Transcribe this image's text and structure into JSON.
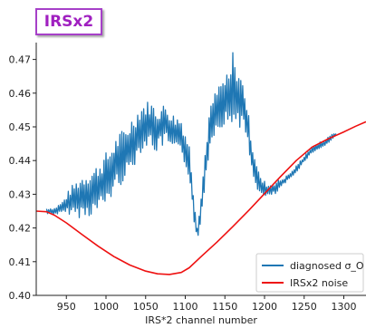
{
  "badge": {
    "label": "IRSx2"
  },
  "chart_data": {
    "type": "line",
    "title": "",
    "xlabel": "IRS*2 channel number",
    "ylabel": "",
    "xlim": [
      912,
      1328
    ],
    "ylim": [
      0.4,
      0.475
    ],
    "x_ticks": [
      950,
      1000,
      1050,
      1100,
      1150,
      1200,
      1250,
      1300
    ],
    "y_ticks": [
      0.4,
      0.41,
      0.42,
      0.43,
      0.44,
      0.45,
      0.46,
      0.47
    ],
    "y_tick_labels": [
      "0.40",
      "0.41",
      "0.42",
      "0.43",
      "0.44",
      "0.45",
      "0.46",
      "0.47"
    ],
    "grid": false,
    "legend_position": "bottom-right",
    "series": [
      {
        "name": "diagnosed σ_O",
        "color": "#1f77b4",
        "x": [
          925,
          935,
          945,
          955,
          965,
          975,
          985,
          995,
          1005,
          1015,
          1025,
          1035,
          1045,
          1055,
          1065,
          1075,
          1085,
          1095,
          1105,
          1110,
          1115,
          1120,
          1125,
          1130,
          1135,
          1145,
          1155,
          1165,
          1175,
          1185,
          1195,
          1205,
          1215,
          1225,
          1235,
          1245,
          1255,
          1265,
          1275,
          1285,
          1290
        ],
        "y": [
          0.425,
          0.425,
          0.426,
          0.428,
          0.429,
          0.43,
          0.431,
          0.433,
          0.436,
          0.44,
          0.442,
          0.446,
          0.45,
          0.451,
          0.449,
          0.451,
          0.448,
          0.447,
          0.44,
          0.428,
          0.418,
          0.426,
          0.438,
          0.448,
          0.453,
          0.457,
          0.458,
          0.46,
          0.455,
          0.44,
          0.432,
          0.431,
          0.432,
          0.434,
          0.436,
          0.439,
          0.442,
          0.444,
          0.445,
          0.447,
          0.448
        ],
        "noise": [
          0.001,
          0.001,
          0.002,
          0.004,
          0.006,
          0.007,
          0.007,
          0.008,
          0.008,
          0.008,
          0.008,
          0.008,
          0.007,
          0.007,
          0.007,
          0.006,
          0.006,
          0.006,
          0.005,
          0.004,
          0.004,
          0.004,
          0.005,
          0.006,
          0.006,
          0.007,
          0.008,
          0.009,
          0.007,
          0.005,
          0.003,
          0.002,
          0.002,
          0.001,
          0.001,
          0.001,
          0.001,
          0.001,
          0.001,
          0.001,
          0.001
        ]
      },
      {
        "name": "IRSx2 noise",
        "color": "#ee1111",
        "x": [
          912,
          925,
          935,
          950,
          970,
          990,
          1010,
          1030,
          1050,
          1065,
          1080,
          1095,
          1105,
          1120,
          1140,
          1160,
          1180,
          1200,
          1220,
          1240,
          1260,
          1280,
          1300,
          1315,
          1328
        ],
        "y": [
          0.425,
          0.4248,
          0.4238,
          0.4215,
          0.418,
          0.4146,
          0.4115,
          0.409,
          0.4072,
          0.4064,
          0.4062,
          0.4068,
          0.4082,
          0.4115,
          0.4158,
          0.4204,
          0.4252,
          0.4302,
          0.4352,
          0.44,
          0.444,
          0.4464,
          0.4485,
          0.4502,
          0.4515
        ]
      }
    ]
  }
}
